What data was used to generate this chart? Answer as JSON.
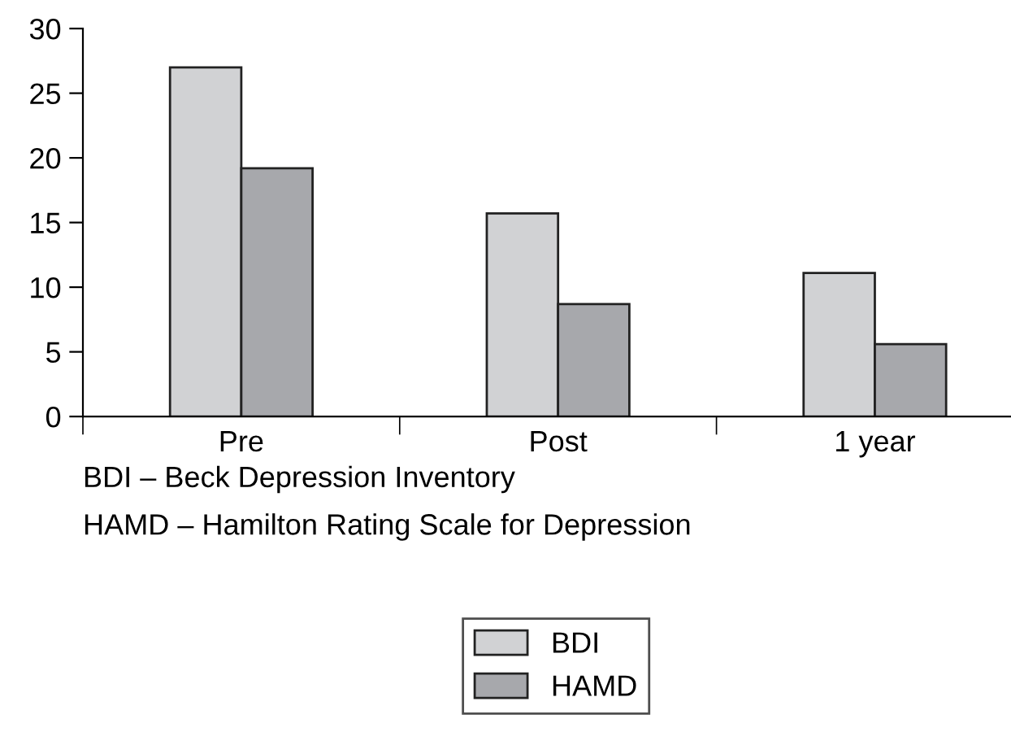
{
  "chart_data": {
    "type": "bar",
    "categories": [
      "Pre",
      "Post",
      "1 year"
    ],
    "series": [
      {
        "name": "BDI",
        "color": "#d1d2d4",
        "values": [
          27.0,
          15.7,
          11.1
        ]
      },
      {
        "name": "HAMD",
        "color": "#a7a8ac",
        "values": [
          19.2,
          8.7,
          5.6
        ]
      }
    ],
    "ylim": [
      0,
      30
    ],
    "yticks": [
      0,
      5,
      10,
      15,
      20,
      25,
      30
    ],
    "grid": false,
    "legend": "bottom",
    "annotations": [
      "BDI – Beck Depression Inventory",
      "HAMD – Hamilton Rating Scale for Depression"
    ]
  }
}
